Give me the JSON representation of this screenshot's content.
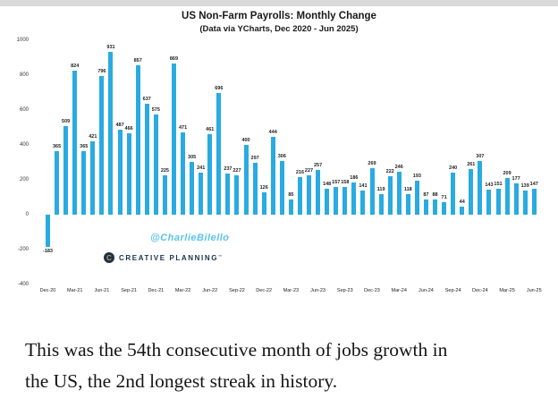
{
  "page": {
    "caption_line1": "This was the 54th consecutive month of jobs growth in",
    "caption_line2": "the US, the 2nd longest streak in history."
  },
  "chart": {
    "title": "US Non-Farm Payrolls: Monthly Change",
    "subtitle": "(Data via YCharts, Dec 2020 - Jun 2025)",
    "watermark": "@CharlieBilello",
    "brand": {
      "logo_letter": "C",
      "name": "CREATIVE PLANNING",
      "tm": "™"
    },
    "colors": {
      "bar": "#29ABE2",
      "watermark": "#58C4F0",
      "brand_navy": "#17324E",
      "brand_gold": "#CE9A2C",
      "top_strip": "#d9d9d9"
    }
  },
  "chart_data": {
    "type": "bar",
    "title": "US Non-Farm Payrolls: Monthly Change",
    "subtitle": "(Data via YCharts, Dec 2020 - Jun 2025)",
    "categories": [
      "Dec-20",
      "Jan-21",
      "Feb-21",
      "Mar-21",
      "Apr-21",
      "May-21",
      "Jun-21",
      "Jul-21",
      "Aug-21",
      "Sep-21",
      "Oct-21",
      "Nov-21",
      "Dec-21",
      "Jan-22",
      "Feb-22",
      "Mar-22",
      "Apr-22",
      "May-22",
      "Jun-22",
      "Jul-22",
      "Aug-22",
      "Sep-22",
      "Oct-22",
      "Nov-22",
      "Dec-22",
      "Jan-23",
      "Feb-23",
      "Mar-23",
      "Apr-23",
      "May-23",
      "Jun-23",
      "Jul-23",
      "Aug-23",
      "Sep-23",
      "Oct-23",
      "Nov-23",
      "Dec-23",
      "Jan-24",
      "Feb-24",
      "Mar-24",
      "Apr-24",
      "May-24",
      "Jun-24",
      "Jul-24",
      "Aug-24",
      "Sep-24",
      "Oct-24",
      "Nov-24",
      "Dec-24",
      "Jan-25",
      "Feb-25",
      "Mar-25",
      "Apr-25",
      "May-25",
      "Jun-25"
    ],
    "values": [
      -183,
      365,
      509,
      824,
      365,
      421,
      796,
      931,
      487,
      466,
      857,
      637,
      575,
      225,
      869,
      471,
      305,
      241,
      461,
      696,
      237,
      227,
      400,
      297,
      126,
      444,
      306,
      85,
      216,
      227,
      257,
      148,
      157,
      158,
      186,
      141,
      269,
      119,
      222,
      246,
      118,
      193,
      87,
      88,
      71,
      240,
      44,
      261,
      307,
      143,
      151,
      209,
      177,
      139,
      147
    ],
    "ylim": [
      -400,
      1000
    ],
    "yticks": [
      1000,
      800,
      600,
      400,
      200,
      0,
      -200,
      -400
    ],
    "x_tick_every": 3,
    "grid": false,
    "legend": "none",
    "bar_color": "#29ABE2",
    "xlabel": "",
    "ylabel": ""
  }
}
